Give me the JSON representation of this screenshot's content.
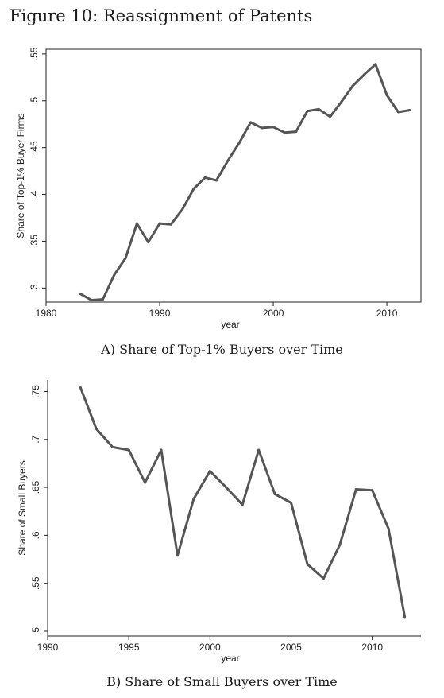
{
  "figure_title": "Figure 10: Reassignment of Patents",
  "captions": {
    "a_letter": "A)",
    "a_text": " Share of Top-1% Buyers over Time",
    "b_letter": "B)",
    "b_text": " Share of Small Buyers over Time"
  },
  "chart_data": [
    {
      "type": "line",
      "title": "",
      "xlabel": "year",
      "ylabel": "Share of Top-1% Buyer Firms",
      "xlim": [
        1980,
        2013
      ],
      "ylim": [
        0.285,
        0.555
      ],
      "xticks": [
        1980,
        1990,
        2000,
        2010
      ],
      "xtick_labels": [
        "1980",
        "1990",
        "2000",
        "2010"
      ],
      "yticks": [
        0.3,
        0.35,
        0.4,
        0.45,
        0.5,
        0.55
      ],
      "ytick_labels": [
        ".3",
        ".35",
        ".4",
        ".45",
        ".5",
        ".55"
      ],
      "frame": true,
      "color": "#555555",
      "x": [
        1983,
        1984,
        1985,
        1986,
        1987,
        1988,
        1989,
        1990,
        1991,
        1992,
        1993,
        1994,
        1995,
        1996,
        1997,
        1998,
        1999,
        2000,
        2001,
        2002,
        2003,
        2004,
        2005,
        2006,
        2007,
        2008,
        2009,
        2010,
        2011,
        2012
      ],
      "y": [
        0.294,
        0.287,
        0.288,
        0.314,
        0.332,
        0.369,
        0.349,
        0.369,
        0.368,
        0.384,
        0.406,
        0.418,
        0.415,
        0.436,
        0.455,
        0.477,
        0.471,
        0.472,
        0.466,
        0.467,
        0.489,
        0.491,
        0.483,
        0.499,
        0.516,
        0.528,
        0.539,
        0.506,
        0.488,
        0.49
      ]
    },
    {
      "type": "line",
      "title": "",
      "xlabel": "year",
      "ylabel": "Share of Small Buyers",
      "xlim": [
        1990,
        2013
      ],
      "ylim": [
        0.495,
        0.762
      ],
      "xticks": [
        1990,
        1995,
        2000,
        2005,
        2010
      ],
      "xtick_labels": [
        "1990",
        "1995",
        "2000",
        "2005",
        "2010"
      ],
      "yticks": [
        0.5,
        0.55,
        0.6,
        0.65,
        0.7,
        0.75
      ],
      "ytick_labels": [
        ".5",
        ".55",
        ".6",
        ".65",
        ".7",
        ".75"
      ],
      "frame": false,
      "color": "#555555",
      "x": [
        1992,
        1993,
        1994,
        1995,
        1996,
        1997,
        1998,
        1999,
        2000,
        2001,
        2002,
        2003,
        2004,
        2005,
        2006,
        2007,
        2008,
        2009,
        2010,
        2011,
        2012
      ],
      "y": [
        0.755,
        0.711,
        0.692,
        0.689,
        0.655,
        0.689,
        0.579,
        0.638,
        0.667,
        0.65,
        0.632,
        0.689,
        0.643,
        0.634,
        0.57,
        0.555,
        0.59,
        0.648,
        0.647,
        0.607,
        0.515
      ]
    }
  ]
}
